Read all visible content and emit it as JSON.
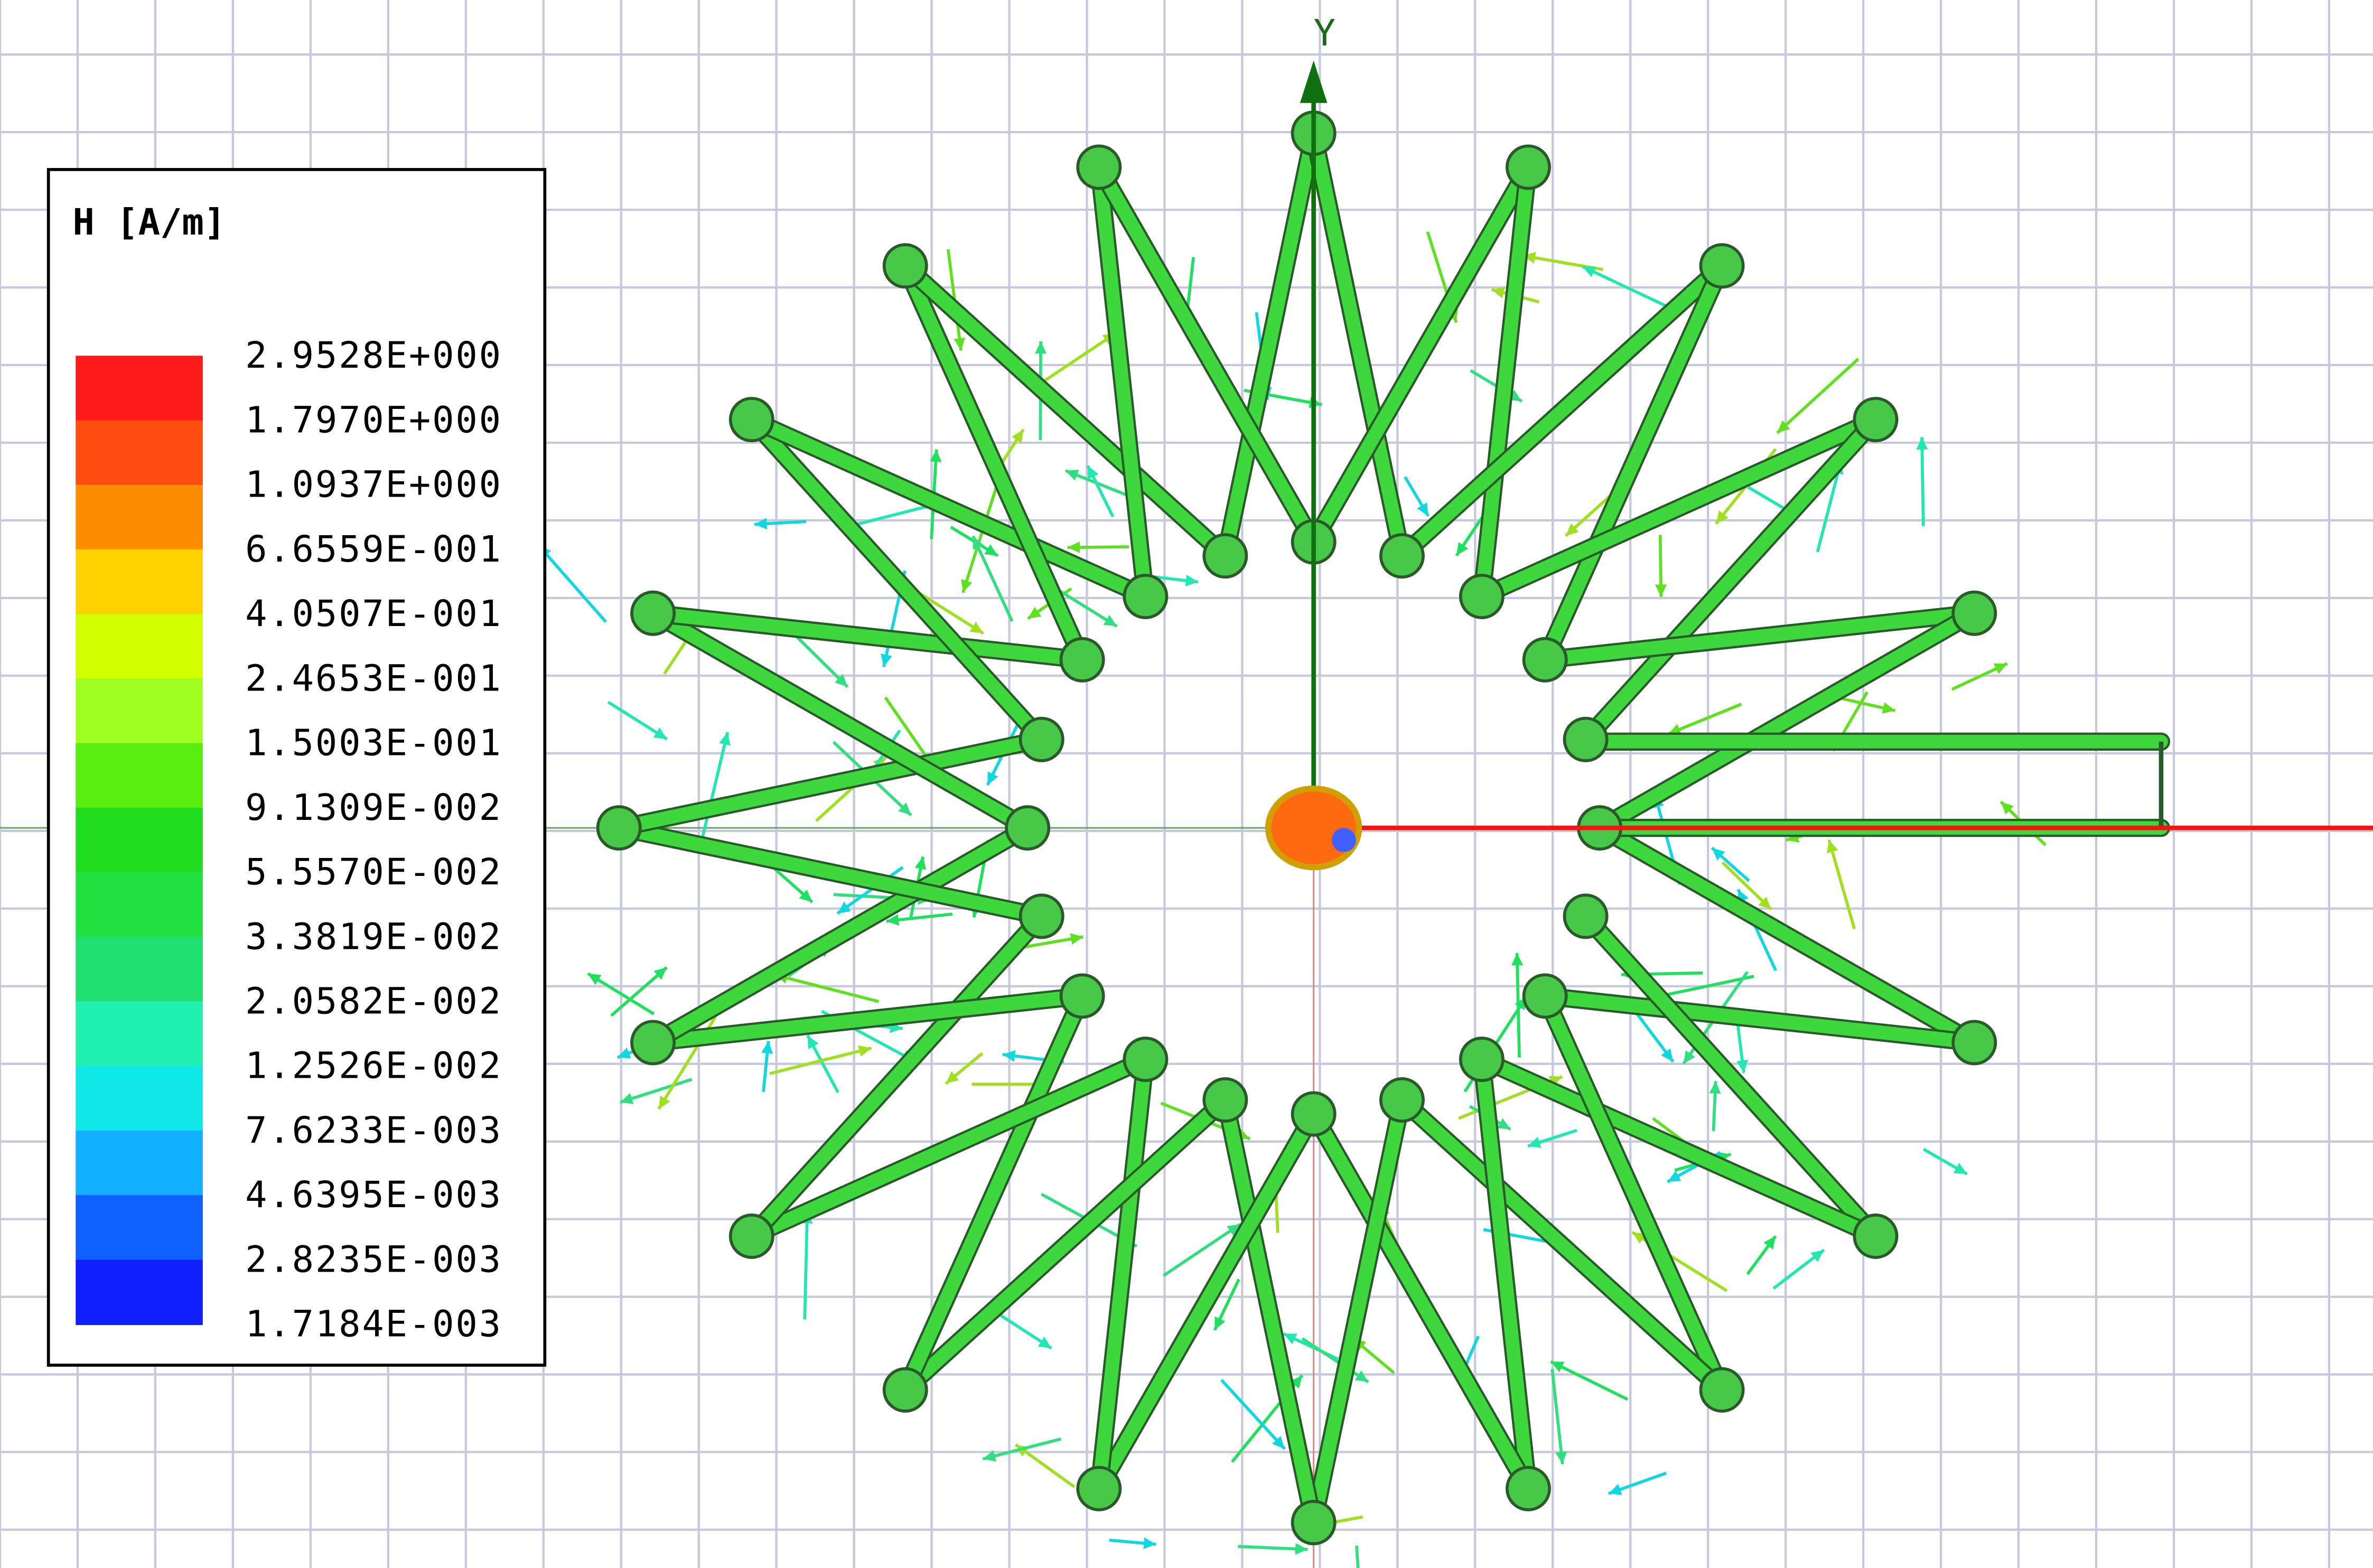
{
  "legend": {
    "title": "H [A/m]",
    "labels": [
      "2.9528E+000",
      "1.7970E+000",
      "1.0937E+000",
      "6.6559E-001",
      "4.0507E-001",
      "2.4653E-001",
      "1.5003E-001",
      "9.1309E-002",
      "5.5570E-002",
      "3.3819E-002",
      "2.0582E-002",
      "1.2526E-002",
      "7.6233E-003",
      "4.6395E-003",
      "2.8235E-003",
      "1.7184E-003"
    ],
    "colors": [
      "#ff1a1a",
      "#ff4d10",
      "#ff8c00",
      "#ffd200",
      "#d2ff00",
      "#a0ff20",
      "#5aee10",
      "#20dd20",
      "#22e040",
      "#20e070",
      "#20f0b0",
      "#10e8e8",
      "#10b0ff",
      "#1060ff",
      "#1020ff"
    ]
  },
  "axis_label": "Y"
}
